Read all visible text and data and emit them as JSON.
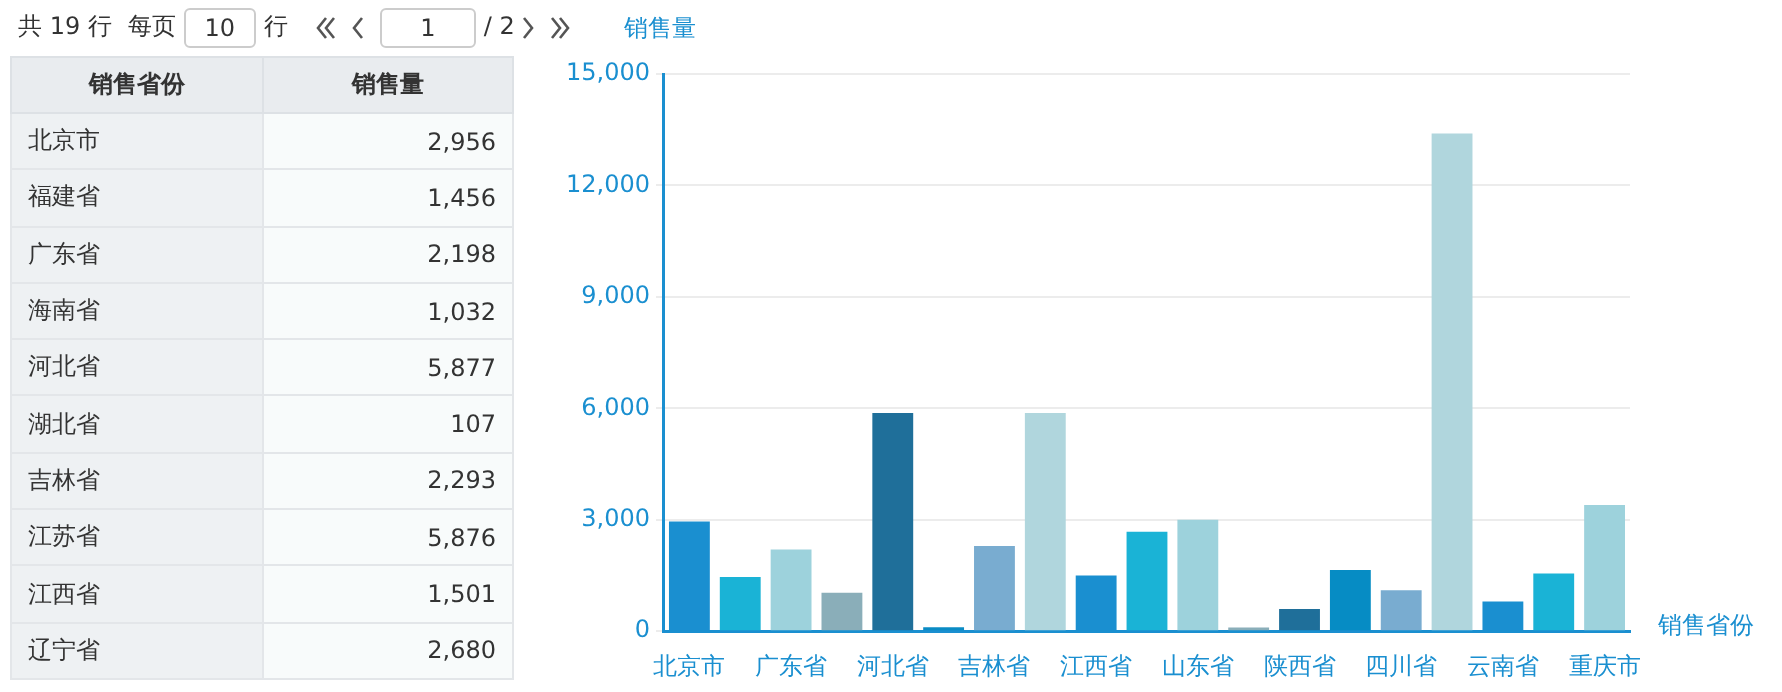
{
  "chart_data": [
    {
      "type": "other",
      "annotations": [
        "共 19 行",
        "每页",
        "10",
        "行",
        "1",
        "/ 2",
        "销售省份",
        "销售量",
        "北京市",
        "2,956",
        "福建省",
        "1,456",
        "广东省",
        "2,198",
        "海南省",
        "1,032",
        "河北省",
        "5,877",
        "湖北省",
        "107",
        "吉林省",
        "2,293",
        "江苏省",
        "5,876",
        "江西省",
        "1,501",
        "辽宁省",
        "2,680"
      ]
    },
    {
      "type": "bar",
      "xlabel": "销售省份",
      "ylabel": "销售量",
      "categories": [
        "北京市",
        null,
        "广东省",
        null,
        "河北省",
        null,
        "吉林省",
        null,
        "江西省",
        null,
        "山东省",
        null,
        "陕西省",
        null,
        "四川省",
        null,
        "云南省",
        null,
        "重庆市"
      ],
      "values": [
        2956,
        1456,
        2198,
        1032,
        5877,
        107,
        2293,
        5876,
        1501,
        2680,
        3000,
        100,
        600,
        1650,
        1100,
        13400,
        800,
        1550,
        3400
      ],
      "colors": [
        "#1a8fd0",
        "#1ab3d6",
        "#9dd2dc",
        "#8aaeb9",
        "#1f6f9a",
        "#0a8bc4",
        "#79acd0",
        "#b0d6dd",
        "#1a8fd0",
        "#1ab3d6",
        "#9dd2dc",
        "#8aaeb9",
        "#1f6f9a",
        "#068cc4",
        "#79acd0",
        "#b0d6dd",
        "#1a8fd0",
        "#1ab3d6",
        "#9dd2dc"
      ],
      "ylim": [
        0,
        15000
      ],
      "yticks": [
        {
          "value": 0,
          "label": "0"
        },
        {
          "value": 3000,
          "label": "3,000"
        },
        {
          "value": 6000,
          "label": "6,000"
        },
        {
          "value": 9000,
          "label": "9,000"
        },
        {
          "value": 12000,
          "label": "12,000"
        },
        {
          "value": 15000,
          "label": "15,000"
        }
      ],
      "grid": "y",
      "legend": false
    }
  ]
}
